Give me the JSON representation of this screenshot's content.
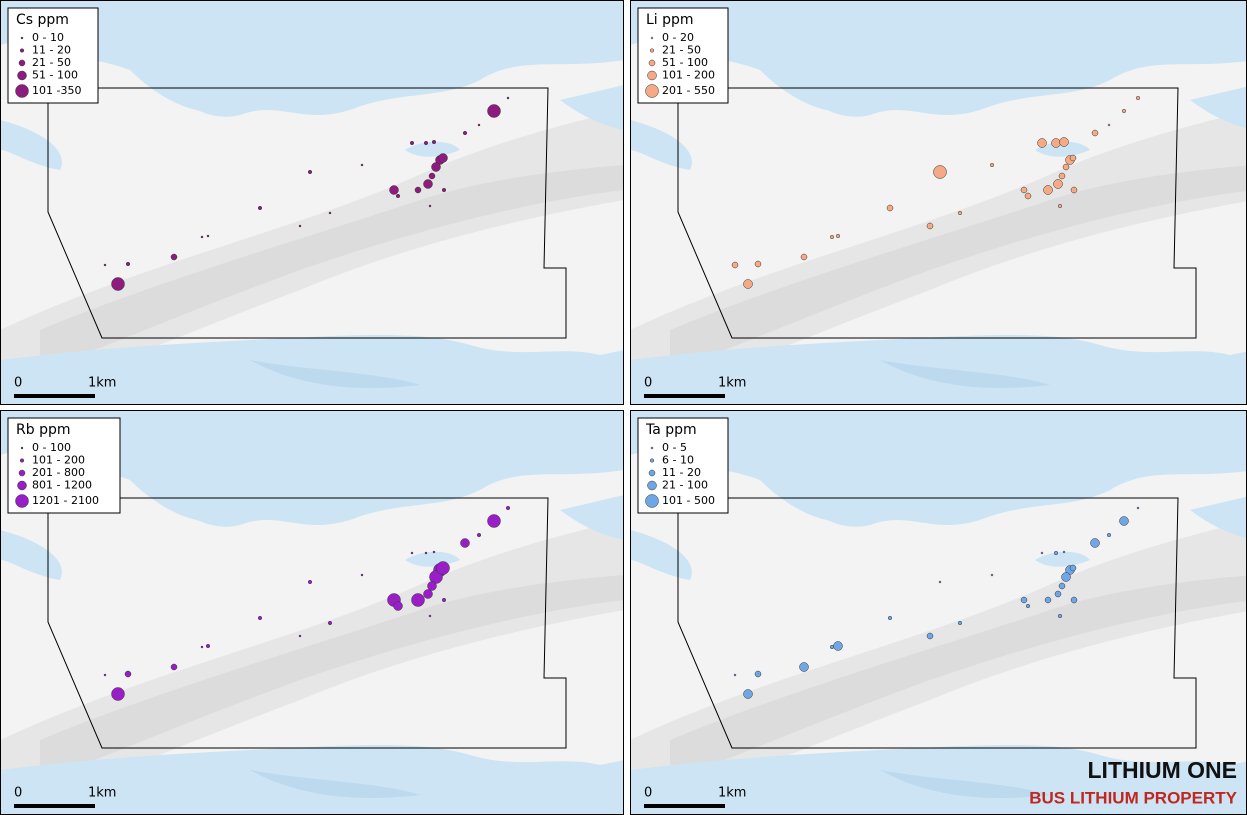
{
  "panels": [
    {
      "legend": {
        "title": "Cs ppm",
        "items": [
          "0 - 10",
          "11 - 20",
          "21 - 50",
          "51 - 100",
          "101 -350"
        ]
      },
      "scale": {
        "start": "0",
        "end": "1km"
      }
    },
    {
      "legend": {
        "title": "Li ppm",
        "items": [
          "0 - 20",
          "21 - 50",
          "51 - 100",
          "101 - 200",
          "201 - 550"
        ]
      },
      "scale": {
        "start": "0",
        "end": "1km"
      }
    },
    {
      "legend": {
        "title": "Rb ppm",
        "items": [
          "0 - 100",
          "101 - 200",
          "201 - 800",
          "801 - 1200",
          "1201 - 2100"
        ]
      },
      "scale": {
        "start": "0",
        "end": "1km"
      }
    },
    {
      "legend": {
        "title": "Ta ppm",
        "items": [
          "0 - 5",
          "6 - 10",
          "11 - 20",
          "21 - 100",
          "101 - 500"
        ]
      },
      "scale": {
        "start": "0",
        "end": "1km"
      }
    }
  ],
  "branding": {
    "title": "LITHIUM ONE",
    "subtitle": "BUS LITHIUM PROPERTY"
  }
}
